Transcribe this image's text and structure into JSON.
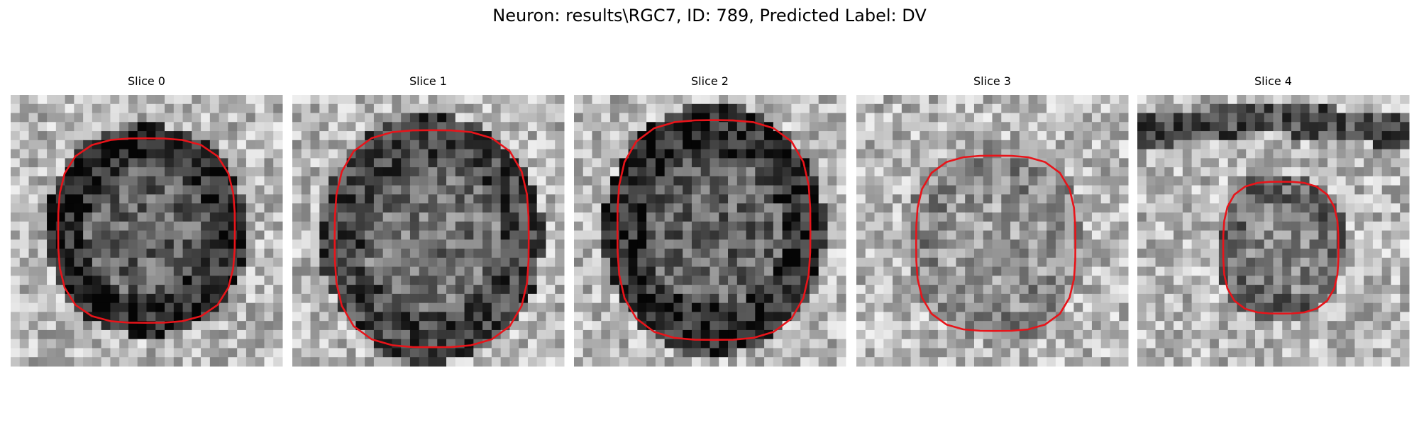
{
  "title": "Neuron: results\\RGC7, ID: 789, Predicted Label: DV",
  "panels": [
    {
      "title": "Slice 0"
    },
    {
      "title": "Slice 1"
    },
    {
      "title": "Slice 2"
    },
    {
      "title": "Slice 3"
    },
    {
      "title": "Slice 4"
    }
  ]
}
